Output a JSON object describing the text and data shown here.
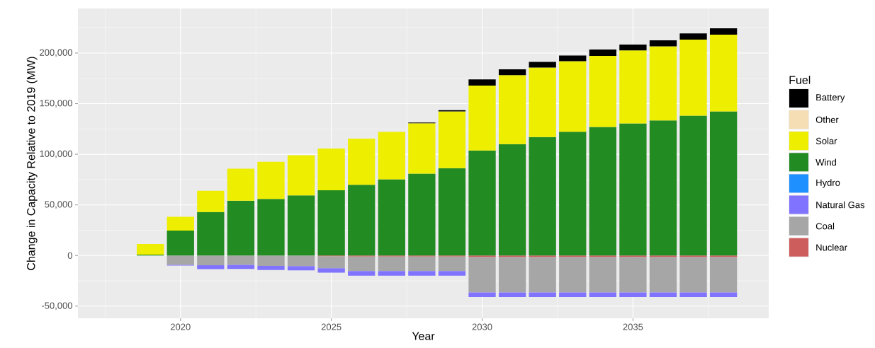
{
  "chart_data": {
    "type": "bar",
    "stacked": true,
    "xlabel": "Year",
    "ylabel": "Change in Capacity Relative to 2019 (MW)",
    "legend_title": "Fuel",
    "legend": "right",
    "grid": true,
    "x": [
      2019,
      2020,
      2021,
      2022,
      2023,
      2024,
      2025,
      2026,
      2027,
      2028,
      2029,
      2030,
      2031,
      2032,
      2033,
      2034,
      2035,
      2036,
      2037,
      2038
    ],
    "xlim": [
      2016.6,
      2039.5
    ],
    "xticks": [
      2020,
      2025,
      2030,
      2035
    ],
    "ylim": [
      -62000,
      244000
    ],
    "yticks": [
      {
        "value": -50000,
        "label": "-50,000"
      },
      {
        "value": 0,
        "label": "0"
      },
      {
        "value": 50000,
        "label": "50,000"
      },
      {
        "value": 100000,
        "label": "100,000"
      },
      {
        "value": 150000,
        "label": "150,000"
      },
      {
        "value": 200000,
        "label": "200,000"
      }
    ],
    "series": [
      {
        "name": "Nuclear",
        "color": "#cd5c5c",
        "values": [
          0,
          0,
          0,
          0,
          0,
          0,
          -900,
          -1000,
          -1000,
          -1000,
          -1000,
          -1500,
          -1500,
          -1500,
          -1500,
          -1500,
          -1500,
          -1500,
          -1500,
          -1500
        ]
      },
      {
        "name": "Coal",
        "color": "#a6a6a6",
        "values": [
          0,
          -9300,
          -9600,
          -9300,
          -10300,
          -10500,
          -11700,
          -14400,
          -14400,
          -14400,
          -14400,
          -35000,
          -35000,
          -35000,
          -35000,
          -35000,
          -35000,
          -35000,
          -35000,
          -35000
        ]
      },
      {
        "name": "Natural Gas",
        "color": "#8073ff",
        "values": [
          0,
          -700,
          -3900,
          -3900,
          -4000,
          -4200,
          -4400,
          -4500,
          -4500,
          -4500,
          -4500,
          -4600,
          -4600,
          -4600,
          -4600,
          -4600,
          -4600,
          -4600,
          -4600,
          -4600
        ]
      },
      {
        "name": "Hydro",
        "color": "#1e90ff",
        "values": [
          0,
          0,
          0,
          0,
          0,
          0,
          0,
          0,
          0,
          0,
          0,
          0,
          0,
          0,
          0,
          0,
          0,
          0,
          0,
          0
        ]
      },
      {
        "name": "Wind",
        "color": "#228b22",
        "values": [
          800,
          24700,
          43000,
          54200,
          55900,
          59400,
          64500,
          69900,
          75200,
          80800,
          86200,
          103700,
          110000,
          117000,
          122300,
          127000,
          130500,
          133400,
          138100,
          142300
        ]
      },
      {
        "name": "Solar",
        "color": "#eeee00",
        "values": [
          10600,
          13600,
          21000,
          31500,
          36600,
          39600,
          41100,
          45600,
          46800,
          49800,
          56100,
          64100,
          68100,
          68600,
          69600,
          70200,
          72100,
          73200,
          75200,
          75900
        ]
      },
      {
        "name": "Other",
        "color": "#f5deb3",
        "values": [
          0,
          0,
          0,
          0,
          0,
          0,
          0,
          0,
          0,
          0,
          0,
          0,
          0,
          0,
          0,
          0,
          0,
          0,
          0,
          0
        ]
      },
      {
        "name": "Battery",
        "color": "#000000",
        "values": [
          0,
          0,
          0,
          0,
          0,
          0,
          0,
          0,
          0,
          800,
          1200,
          6100,
          5800,
          5600,
          5600,
          6300,
          5800,
          6000,
          6100,
          6300
        ]
      }
    ]
  }
}
